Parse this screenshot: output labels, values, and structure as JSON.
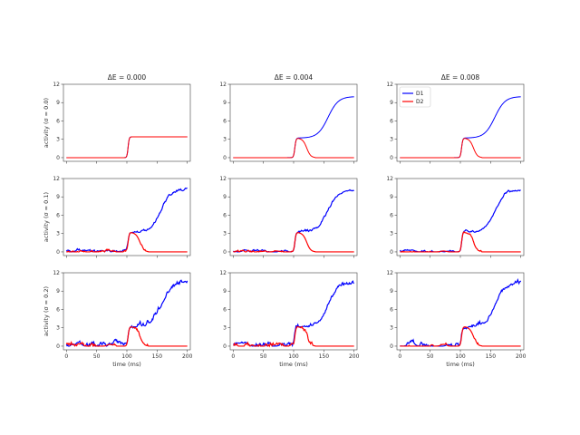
{
  "chart_data": {
    "type": "line",
    "layout": "3x3 small multiples",
    "column_titles": [
      "ΔE = 0.000",
      "ΔE = 0.004",
      "ΔE = 0.008"
    ],
    "row_ylabels": [
      "activity (σ = 0.0)",
      "activity (σ = 0.1)",
      "activity (σ = 0.2)"
    ],
    "xlabel": "time (ms)",
    "xlim": [
      -5,
      205
    ],
    "ylim": [
      -0.6,
      12
    ],
    "xticks": [
      0,
      50,
      100,
      150,
      200
    ],
    "yticks": [
      0,
      3,
      6,
      9,
      12
    ],
    "legend": {
      "location": "top-left",
      "panel": "row 1, column 3",
      "entries": [
        "D1",
        "D2"
      ]
    },
    "series_colors": {
      "D1": "#0000ff",
      "D2": "#ff0000"
    },
    "model": {
      "note": "Curves sampled at t = 0..200 ms; D1 and D2 rise together from t≈100 ms; with ΔE > 0 or noise D2 decays to 0 near t≈130 ms while D1 rises to ≈10",
      "plateau_zero_bias": 3.4,
      "onset_ms": 100,
      "d2_peak_ms": 107,
      "d2_drop_end_ms": 135,
      "d1_final": 10.1,
      "d1_half_rise_ms": 157
    },
    "panels": [
      {
        "row": 0,
        "col": 0,
        "noise": 0.0,
        "bias": 0.0,
        "D1_final": 3.4,
        "D2_final": 3.4,
        "note": "D1 and D2 overlap"
      },
      {
        "row": 0,
        "col": 1,
        "noise": 0.0,
        "bias": 0.004,
        "D1_final": 10.0,
        "D2_final": 0.0
      },
      {
        "row": 0,
        "col": 2,
        "noise": 0.0,
        "bias": 0.008,
        "D1_final": 10.0,
        "D2_final": 0.0
      },
      {
        "row": 1,
        "col": 0,
        "noise": 0.1,
        "bias": 0.0,
        "D1_final": 10.2,
        "D2_final": 0.0
      },
      {
        "row": 1,
        "col": 1,
        "noise": 0.1,
        "bias": 0.004,
        "D1_final": 10.2,
        "D2_final": 0.0
      },
      {
        "row": 1,
        "col": 2,
        "noise": 0.1,
        "bias": 0.008,
        "D1_final": 10.2,
        "D2_final": 0.0
      },
      {
        "row": 2,
        "col": 0,
        "noise": 0.2,
        "bias": 0.0,
        "D1_final": 10.4,
        "D2_final": 0.0
      },
      {
        "row": 2,
        "col": 1,
        "noise": 0.2,
        "bias": 0.004,
        "D1_final": 10.4,
        "D2_final": 0.0
      },
      {
        "row": 2,
        "col": 2,
        "noise": 0.2,
        "bias": 0.008,
        "D1_final": 10.4,
        "D2_final": 0.0
      }
    ]
  }
}
